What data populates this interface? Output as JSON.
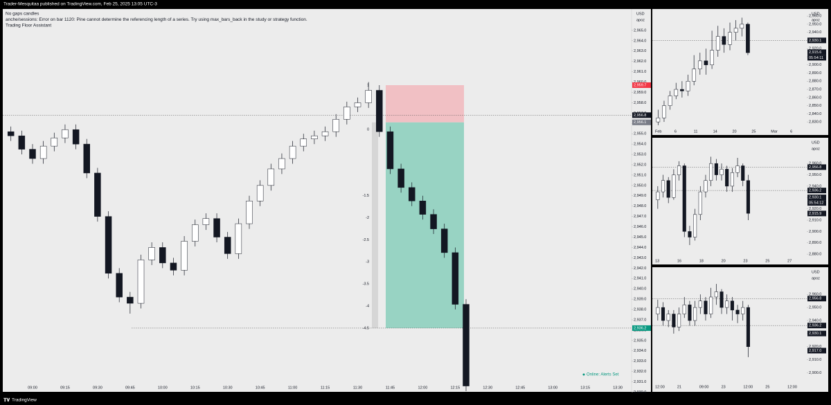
{
  "header": {
    "publisher": "Trader-Mesquitaa published on TradingView.com, Feb 25, 2025 13:05 UTC-3"
  },
  "footer": {
    "brand": "TradingView"
  },
  "chart_data": [
    {
      "type": "candlestick",
      "indicators": [
        "No gaps candles",
        "anche/sessions: Error on bar 1120: Pine cannot determine the referencing length of a series. Try using max_bars_back in the study or strategy function.",
        "Trading Floor Assistant"
      ],
      "currency": "USD",
      "scale_label": "apoz",
      "status": "Online: Alerts Set",
      "x": [
        "08:50",
        "08:55",
        "09:00",
        "09:05",
        "09:10",
        "09:15",
        "09:20",
        "09:25",
        "09:30",
        "09:35",
        "09:40",
        "09:45",
        "09:50",
        "09:55",
        "10:00",
        "10:05",
        "10:10",
        "10:15",
        "10:20",
        "10:25",
        "10:30",
        "10:35",
        "10:40",
        "10:45",
        "10:50",
        "10:55",
        "11:00",
        "11:05",
        "11:10",
        "11:15",
        "11:20",
        "11:25",
        "11:30",
        "11:35",
        "11:40",
        "11:45",
        "11:50",
        "11:55",
        "12:00",
        "12:05",
        "12:10",
        "12:15",
        "12:20"
      ],
      "open": [
        2955.2,
        2954.8,
        2953.5,
        2952.6,
        2953.8,
        2954.6,
        2955.4,
        2954.0,
        2951.2,
        2947.0,
        2941.5,
        2939.2,
        2938.6,
        2942.8,
        2944.0,
        2942.5,
        2941.8,
        2944.6,
        2946.2,
        2946.8,
        2945.0,
        2943.4,
        2946.3,
        2948.5,
        2950.0,
        2951.6,
        2952.6,
        2953.8,
        2954.5,
        2954.8,
        2955.2,
        2956.4,
        2957.6,
        2958.0,
        2959.2,
        2955.2,
        2951.6,
        2949.8,
        2948.5,
        2947.2,
        2945.8,
        2943.5,
        2938.5
      ],
      "high": [
        2955.7,
        2955.3,
        2954.0,
        2954.3,
        2955.1,
        2955.9,
        2955.9,
        2954.5,
        2951.7,
        2947.5,
        2942.0,
        2939.7,
        2943.3,
        2944.5,
        2944.5,
        2943.0,
        2945.1,
        2946.7,
        2947.3,
        2947.3,
        2945.5,
        2946.8,
        2949.0,
        2950.5,
        2952.1,
        2953.1,
        2954.3,
        2955.0,
        2955.3,
        2955.7,
        2956.9,
        2958.1,
        2958.5,
        2960.0,
        2959.7,
        2955.7,
        2952.1,
        2950.3,
        2949.0,
        2947.7,
        2946.3,
        2944.0,
        2939.0
      ],
      "low": [
        2954.3,
        2953.0,
        2952.1,
        2952.1,
        2953.3,
        2954.1,
        2953.5,
        2950.7,
        2946.5,
        2941.0,
        2938.7,
        2937.6,
        2938.1,
        2942.3,
        2942.0,
        2941.3,
        2941.3,
        2944.1,
        2945.7,
        2944.5,
        2942.9,
        2942.9,
        2945.8,
        2948.0,
        2949.5,
        2951.1,
        2952.1,
        2953.3,
        2954.0,
        2954.3,
        2954.7,
        2955.9,
        2957.1,
        2957.5,
        2954.7,
        2951.1,
        2949.3,
        2948.0,
        2946.7,
        2945.3,
        2943.0,
        2938.0,
        2930.1
      ],
      "close": [
        2954.8,
        2953.5,
        2952.6,
        2953.8,
        2954.6,
        2955.4,
        2954.0,
        2951.2,
        2947.0,
        2941.5,
        2939.2,
        2938.6,
        2942.8,
        2944.0,
        2942.5,
        2941.8,
        2944.6,
        2946.2,
        2946.8,
        2945.0,
        2943.4,
        2946.3,
        2948.5,
        2950.0,
        2951.6,
        2952.6,
        2953.8,
        2954.5,
        2954.8,
        2955.2,
        2956.4,
        2957.6,
        2958.0,
        2959.2,
        2955.2,
        2951.6,
        2949.8,
        2948.5,
        2947.2,
        2945.8,
        2943.5,
        2938.5,
        2930.6
      ],
      "ylim": [
        2929.9,
        2967.0
      ],
      "yticks": [
        {
          "value": 2930,
          "label": "2,930.0"
        },
        {
          "value": 2931,
          "label": "2,931.0"
        },
        {
          "value": 2932,
          "label": "2,932.0"
        },
        {
          "value": 2933,
          "label": "2,933.0"
        },
        {
          "value": 2934,
          "label": "2,934.0"
        },
        {
          "value": 2935,
          "label": "2,935.0"
        },
        {
          "value": 2936,
          "label": "2,936.0"
        },
        {
          "value": 2937,
          "label": "2,937.0"
        },
        {
          "value": 2938,
          "label": "2,938.0"
        },
        {
          "value": 2939,
          "label": "2,939.0"
        },
        {
          "value": 2940,
          "label": "2,940.0"
        },
        {
          "value": 2941,
          "label": "2,941.0"
        },
        {
          "value": 2942,
          "label": "2,942.0"
        },
        {
          "value": 2943,
          "label": "2,943.0"
        },
        {
          "value": 2944,
          "label": "2,944.0"
        },
        {
          "value": 2945,
          "label": "2,945.0"
        },
        {
          "value": 2946,
          "label": "2,946.0"
        },
        {
          "value": 2947,
          "label": "2,947.0"
        },
        {
          "value": 2948,
          "label": "2,948.0"
        },
        {
          "value": 2949,
          "label": "2,949.0"
        },
        {
          "value": 2950,
          "label": "2,950.0"
        },
        {
          "value": 2951,
          "label": "2,951.0"
        },
        {
          "value": 2952,
          "label": "2,952.0"
        },
        {
          "value": 2953,
          "label": "2,953.0"
        },
        {
          "value": 2954,
          "label": "2,954.0"
        },
        {
          "value": 2955,
          "label": "2,955.0"
        },
        {
          "value": 2956,
          "label": "2,956.0"
        },
        {
          "value": 2957,
          "label": "2,957.0"
        },
        {
          "value": 2958,
          "label": "2,958.0"
        },
        {
          "value": 2959,
          "label": "2,959.0"
        },
        {
          "value": 2960,
          "label": "2,960.0"
        },
        {
          "value": 2961,
          "label": "2,961.0"
        },
        {
          "value": 2962,
          "label": "2,962.0"
        },
        {
          "value": 2963,
          "label": "2,963.0"
        },
        {
          "value": 2964,
          "label": "2,964.0"
        },
        {
          "value": 2965,
          "label": "2,965.0"
        }
      ],
      "xticks": [
        "09:00",
        "09:15",
        "09:30",
        "09:45",
        "10:00",
        "10:15",
        "10:30",
        "10:45",
        "11:00",
        "11:15",
        "11:30",
        "11:45",
        "12:00",
        "12:15",
        "12:30",
        "12:45",
        "13:00",
        "13:15",
        "13:30"
      ],
      "price_tags": [
        {
          "value": 2959.7,
          "label": "2,959.7",
          "color": "#f23645"
        },
        {
          "value": 2956.8,
          "label": "2,956.8",
          "color": "#131722",
          "line": true
        },
        {
          "value": 2956.1,
          "label": "2,956.1",
          "color": "#787b86"
        },
        {
          "value": 2936.2,
          "label": "2,936.2",
          "color": "#089981",
          "line": true
        }
      ],
      "position_levels": [
        1,
        0,
        -1.5,
        -2,
        -2.5,
        -3,
        -3.5,
        -4,
        -4.5
      ]
    },
    {
      "type": "candlestick",
      "currency": "USD",
      "scale_label": "apoz",
      "open": [
        2830,
        2835,
        2850,
        2862,
        2870,
        2868,
        2880,
        2895,
        2905,
        2900,
        2918,
        2935,
        2925,
        2940,
        2945,
        2950
      ],
      "high": [
        2845,
        2856,
        2868,
        2878,
        2880,
        2888,
        2912,
        2915,
        2920,
        2942,
        2948,
        2945,
        2952,
        2955,
        2958,
        2952
      ],
      "low": [
        2826,
        2830,
        2845,
        2858,
        2860,
        2862,
        2875,
        2888,
        2888,
        2895,
        2910,
        2915,
        2918,
        2930,
        2935,
        2912
      ],
      "close": [
        2835,
        2850,
        2862,
        2870,
        2868,
        2880,
        2895,
        2905,
        2900,
        2918,
        2935,
        2925,
        2940,
        2945,
        2950,
        2915
      ],
      "ylim": [
        2825,
        2961
      ],
      "yticks": [
        {
          "value": 2830,
          "label": "2,830.0"
        },
        {
          "value": 2840,
          "label": "2,840.0"
        },
        {
          "value": 2850,
          "label": "2,850.0"
        },
        {
          "value": 2860,
          "label": "2,860.0"
        },
        {
          "value": 2870,
          "label": "2,870.0"
        },
        {
          "value": 2880,
          "label": "2,880.0"
        },
        {
          "value": 2890,
          "label": "2,890.0"
        },
        {
          "value": 2900,
          "label": "2,900.0"
        },
        {
          "value": 2910,
          "label": "2,910.0"
        },
        {
          "value": 2920,
          "label": "2,920.0"
        },
        {
          "value": 2930,
          "label": "2,930.0"
        },
        {
          "value": 2940,
          "label": "2,940.0"
        },
        {
          "value": 2950,
          "label": "2,950.0"
        },
        {
          "value": 2960,
          "label": "2,960.0"
        }
      ],
      "xticks": [
        "Feb",
        "6",
        "11",
        "14",
        "20",
        "25",
        "Mar",
        "6"
      ],
      "price_tags": [
        {
          "value": 2930.1,
          "label": "2,930.1",
          "color": "#131722",
          "line": true
        },
        {
          "value": 2915.6,
          "label": "2,915.6",
          "color": "#131722",
          "countdown": "05:54:11"
        }
      ]
    },
    {
      "type": "candlestick",
      "currency": "USD",
      "scale_label": "apoz",
      "open": [
        2928,
        2935,
        2945,
        2930,
        2950,
        2958,
        2900,
        2895,
        2915,
        2935,
        2945,
        2960,
        2950,
        2955,
        2940,
        2952,
        2958,
        2945
      ],
      "high": [
        2940,
        2950,
        2948,
        2955,
        2962,
        2960,
        2905,
        2920,
        2940,
        2950,
        2966,
        2964,
        2960,
        2958,
        2956,
        2965,
        2960,
        2950
      ],
      "low": [
        2920,
        2930,
        2925,
        2928,
        2945,
        2895,
        2888,
        2892,
        2910,
        2930,
        2940,
        2945,
        2945,
        2935,
        2935,
        2948,
        2940,
        2910
      ],
      "close": [
        2935,
        2945,
        2930,
        2950,
        2958,
        2900,
        2895,
        2915,
        2935,
        2945,
        2960,
        2950,
        2955,
        2940,
        2952,
        2958,
        2945,
        2916
      ],
      "ylim": [
        2877,
        2976
      ],
      "yticks": [
        {
          "value": 2880,
          "label": "2,880.0"
        },
        {
          "value": 2890,
          "label": "2,890.0"
        },
        {
          "value": 2900,
          "label": "2,900.0"
        },
        {
          "value": 2910,
          "label": "2,910.0"
        },
        {
          "value": 2920,
          "label": "2,920.0"
        },
        {
          "value": 2930,
          "label": "2,930.0"
        },
        {
          "value": 2940,
          "label": "2,940.0"
        },
        {
          "value": 2950,
          "label": "2,950.0"
        },
        {
          "value": 2960,
          "label": "2,960.0"
        }
      ],
      "xticks": [
        "13",
        "16",
        "18",
        "20",
        "23",
        "25",
        "27"
      ],
      "price_tags": [
        {
          "value": 2956.8,
          "label": "2,956.8",
          "color": "#131722",
          "line": true
        },
        {
          "value": 2936.2,
          "label": "2,936.2",
          "color": "#131722",
          "line": true
        },
        {
          "value": 2930.1,
          "label": "2,930.1",
          "color": "#131722",
          "countdown": "05:54:12"
        },
        {
          "value": 2915.9,
          "label": "2,915.9",
          "color": "#131722"
        }
      ]
    },
    {
      "type": "candlestick",
      "currency": "USD",
      "scale_label": "apoz",
      "open": [
        2945,
        2950,
        2940,
        2945,
        2935,
        2945,
        2952,
        2940,
        2950,
        2955,
        2945,
        2958,
        2962,
        2950,
        2955,
        2948,
        2945,
        2950
      ],
      "high": [
        2956,
        2954,
        2948,
        2948,
        2950,
        2958,
        2955,
        2955,
        2960,
        2958,
        2965,
        2968,
        2964,
        2960,
        2958,
        2952,
        2955,
        2952
      ],
      "low": [
        2940,
        2936,
        2935,
        2930,
        2932,
        2942,
        2936,
        2936,
        2945,
        2940,
        2942,
        2952,
        2945,
        2945,
        2940,
        2938,
        2940,
        2912
      ],
      "close": [
        2950,
        2940,
        2945,
        2935,
        2945,
        2952,
        2940,
        2950,
        2955,
        2945,
        2958,
        2962,
        2950,
        2955,
        2948,
        2945,
        2950,
        2920
      ],
      "ylim": [
        2895,
        2976
      ],
      "yticks": [
        {
          "value": 2900,
          "label": "2,900.0"
        },
        {
          "value": 2910,
          "label": "2,910.0"
        },
        {
          "value": 2920,
          "label": "2,920.0"
        },
        {
          "value": 2930,
          "label": "2,930.0"
        },
        {
          "value": 2940,
          "label": "2,940.0"
        },
        {
          "value": 2950,
          "label": "2,950.0"
        },
        {
          "value": 2960,
          "label": "2,960.0"
        }
      ],
      "xticks": [
        "12:00",
        "21",
        "09:00",
        "23",
        "12:00",
        "25",
        "12:00"
      ],
      "price_tags": [
        {
          "value": 2956.8,
          "label": "2,956.8",
          "color": "#131722",
          "line": true
        },
        {
          "value": 2936.2,
          "label": "2,936.2",
          "color": "#131722",
          "line": true
        },
        {
          "value": 2930.1,
          "label": "2,930.1",
          "color": "#131722"
        },
        {
          "value": 2917.0,
          "label": "2,917.0",
          "color": "#131722"
        }
      ]
    }
  ]
}
